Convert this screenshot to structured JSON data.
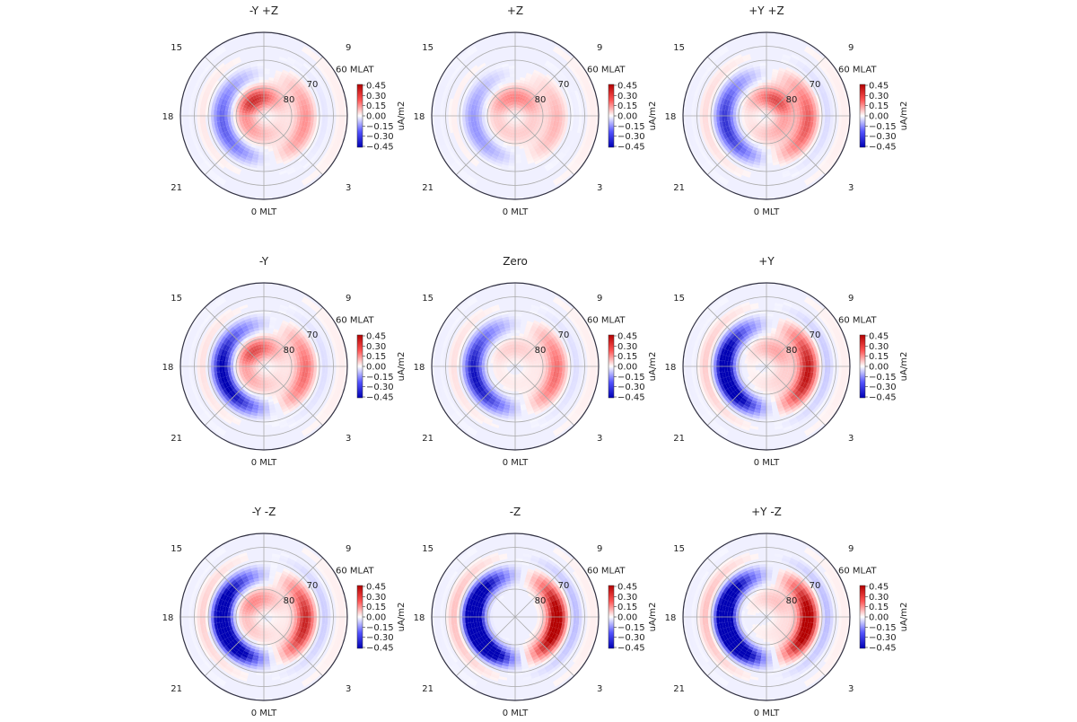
{
  "chart_data": {
    "type": "polar-heatmap",
    "colormap": "bwr",
    "shared_colorbar": {
      "label": "uA/m2",
      "ticks": [
        "0.45",
        "0.30",
        "0.15",
        "0.00",
        "−0.15",
        "−0.30",
        "−0.45"
      ],
      "range": [
        -0.45,
        0.45
      ]
    },
    "shared_axes": {
      "mlt_labels": {
        "top": "",
        "right": "",
        "bottom": "0 MLT",
        "left": "18"
      },
      "diag_labels": {
        "top_left": "15",
        "top_right": "9",
        "bottom_left": "21",
        "bottom_right": "3"
      },
      "mlat_labels": [
        "60 MLAT",
        "70",
        "80"
      ],
      "mlat_range": [
        60,
        90
      ]
    },
    "panels": [
      {
        "title": "-Y +Z",
        "region1": 0.15,
        "region2": -0.12,
        "cusp": 0.35,
        "dusk_shift": 0.1,
        "asym": -0.6
      },
      {
        "title": "+Z",
        "region1": 0.1,
        "region2": -0.08,
        "cusp": 0.25,
        "dusk_shift": 0.1,
        "asym": 0.0
      },
      {
        "title": "+Y +Z",
        "region1": 0.22,
        "region2": -0.1,
        "cusp": 0.3,
        "dusk_shift": 0.1,
        "asym": 0.6
      },
      {
        "title": "-Y",
        "region1": 0.2,
        "region2": -0.3,
        "cusp": 0.3,
        "dusk_shift": 0.1,
        "asym": -0.6
      },
      {
        "title": "Zero",
        "region1": 0.2,
        "region2": -0.22,
        "cusp": 0.1,
        "dusk_shift": 0.1,
        "asym": 0.0
      },
      {
        "title": "+Y",
        "region1": 0.32,
        "region2": -0.24,
        "cusp": 0.15,
        "dusk_shift": 0.1,
        "asym": 0.6
      },
      {
        "title": "-Y -Z",
        "region1": 0.3,
        "region2": -0.38,
        "cusp": 0.2,
        "dusk_shift": 0.1,
        "asym": -0.6
      },
      {
        "title": "-Z",
        "region1": 0.4,
        "region2": -0.38,
        "cusp": 0.0,
        "dusk_shift": 0.1,
        "asym": 0.0
      },
      {
        "title": "+Y -Z",
        "region1": 0.4,
        "region2": -0.35,
        "cusp": 0.1,
        "dusk_shift": 0.1,
        "asym": 0.6
      }
    ]
  }
}
